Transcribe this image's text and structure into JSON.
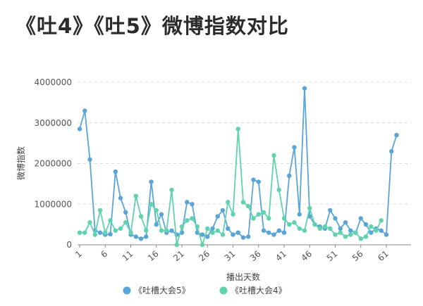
{
  "title": "《吐4》《吐5》微博指数对比",
  "chart_data": {
    "type": "line",
    "xlabel": "播出天数",
    "ylabel": "微博指数",
    "ylim": [
      0,
      4000000
    ],
    "yticks": [
      "0",
      "1000000",
      "2000000",
      "3000000",
      "4000000"
    ],
    "xticks": [
      "1",
      "6",
      "11",
      "16",
      "21",
      "26",
      "31",
      "36",
      "41",
      "46",
      "51",
      "56",
      "61"
    ],
    "grid": "horizontal dashed",
    "legend_position": "bottom",
    "series": [
      {
        "name": "《吐槽大会5》",
        "color": "#5aa5d8",
        "values": [
          2850000,
          3300000,
          2100000,
          350000,
          300000,
          250000,
          260000,
          1800000,
          1150000,
          800000,
          250000,
          200000,
          150000,
          200000,
          1550000,
          500000,
          750000,
          300000,
          350000,
          250000,
          300000,
          1050000,
          1000000,
          300000,
          250000,
          200000,
          400000,
          700000,
          850000,
          400000,
          250000,
          300000,
          180000,
          200000,
          1600000,
          1550000,
          350000,
          300000,
          250000,
          350000,
          300000,
          1700000,
          2400000,
          750000,
          3850000,
          700000,
          500000,
          450000,
          400000,
          850000,
          650000,
          400000,
          550000,
          350000,
          300000,
          650000,
          500000,
          300000,
          400000,
          350000,
          250000,
          2300000,
          2700000
        ]
      },
      {
        "name": "《吐槽大会4》",
        "color": "#5fd3ae",
        "values": [
          300000,
          300000,
          550000,
          250000,
          850000,
          300000,
          600000,
          350000,
          400000,
          550000,
          300000,
          1200000,
          700000,
          350000,
          1000000,
          850000,
          350000,
          350000,
          1350000,
          0,
          450000,
          600000,
          650000,
          450000,
          0,
          400000,
          300000,
          350000,
          250000,
          1050000,
          750000,
          2850000,
          1050000,
          950000,
          650000,
          750000,
          800000,
          650000,
          2200000,
          1350000,
          650000,
          500000,
          550000,
          400000,
          350000,
          900000,
          500000,
          400000,
          450000,
          400000,
          250000,
          300000,
          200000,
          250000,
          300000,
          150000,
          200000,
          450000,
          350000,
          600000
        ]
      }
    ]
  }
}
